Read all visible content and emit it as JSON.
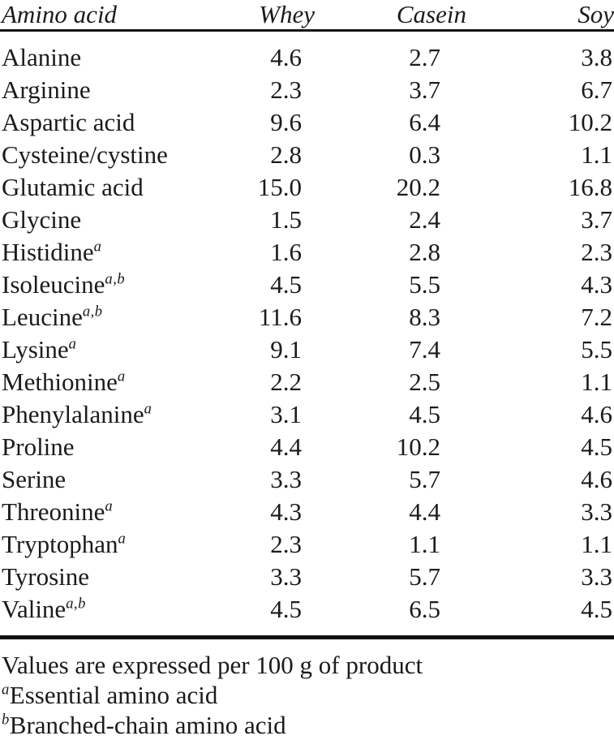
{
  "table": {
    "columns": [
      "Amino acid",
      "Whey",
      "Casein",
      "Soy"
    ],
    "rows": [
      {
        "name": "Alanine",
        "sup": "",
        "whey": "4.6",
        "casein": "2.7",
        "soy": "3.8"
      },
      {
        "name": "Arginine",
        "sup": "",
        "whey": "2.3",
        "casein": "3.7",
        "soy": "6.7"
      },
      {
        "name": "Aspartic acid",
        "sup": "",
        "whey": "9.6",
        "casein": "6.4",
        "soy": "10.2"
      },
      {
        "name": "Cysteine/cystine",
        "sup": "",
        "whey": "2.8",
        "casein": "0.3",
        "soy": "1.1"
      },
      {
        "name": "Glutamic acid",
        "sup": "",
        "whey": "15.0",
        "casein": "20.2",
        "soy": "16.8"
      },
      {
        "name": "Glycine",
        "sup": "",
        "whey": "1.5",
        "casein": "2.4",
        "soy": "3.7"
      },
      {
        "name": "Histidine",
        "sup": "a",
        "whey": "1.6",
        "casein": "2.8",
        "soy": "2.3"
      },
      {
        "name": "Isoleucine",
        "sup": "a,b",
        "whey": "4.5",
        "casein": "5.5",
        "soy": "4.3"
      },
      {
        "name": "Leucine",
        "sup": "a,b",
        "whey": "11.6",
        "casein": "8.3",
        "soy": "7.2"
      },
      {
        "name": "Lysine",
        "sup": "a",
        "whey": "9.1",
        "casein": "7.4",
        "soy": "5.5"
      },
      {
        "name": "Methionine",
        "sup": "a",
        "whey": "2.2",
        "casein": "2.5",
        "soy": "1.1"
      },
      {
        "name": "Phenylalanine",
        "sup": "a",
        "whey": "3.1",
        "casein": "4.5",
        "soy": "4.6"
      },
      {
        "name": "Proline",
        "sup": "",
        "whey": "4.4",
        "casein": "10.2",
        "soy": "4.5"
      },
      {
        "name": "Serine",
        "sup": "",
        "whey": "3.3",
        "casein": "5.7",
        "soy": "4.6"
      },
      {
        "name": "Threonine",
        "sup": "a",
        "whey": "4.3",
        "casein": "4.4",
        "soy": "3.3"
      },
      {
        "name": "Tryptophan",
        "sup": "a",
        "whey": "2.3",
        "casein": "1.1",
        "soy": "1.1"
      },
      {
        "name": "Tyrosine",
        "sup": "",
        "whey": "3.3",
        "casein": "5.7",
        "soy": "3.3"
      },
      {
        "name": "Valine",
        "sup": "a,b",
        "whey": "4.5",
        "casein": "6.5",
        "soy": "4.5"
      }
    ]
  },
  "footnotes": {
    "values_note": "Values are expressed per 100 g of product",
    "a_marker": "a",
    "a_text": "Essential amino acid",
    "b_marker": "b",
    "b_text": "Branched-chain amino acid"
  },
  "colors": {
    "text": "#1b1b1b",
    "rule": "#111111",
    "background": "#ffffff"
  }
}
